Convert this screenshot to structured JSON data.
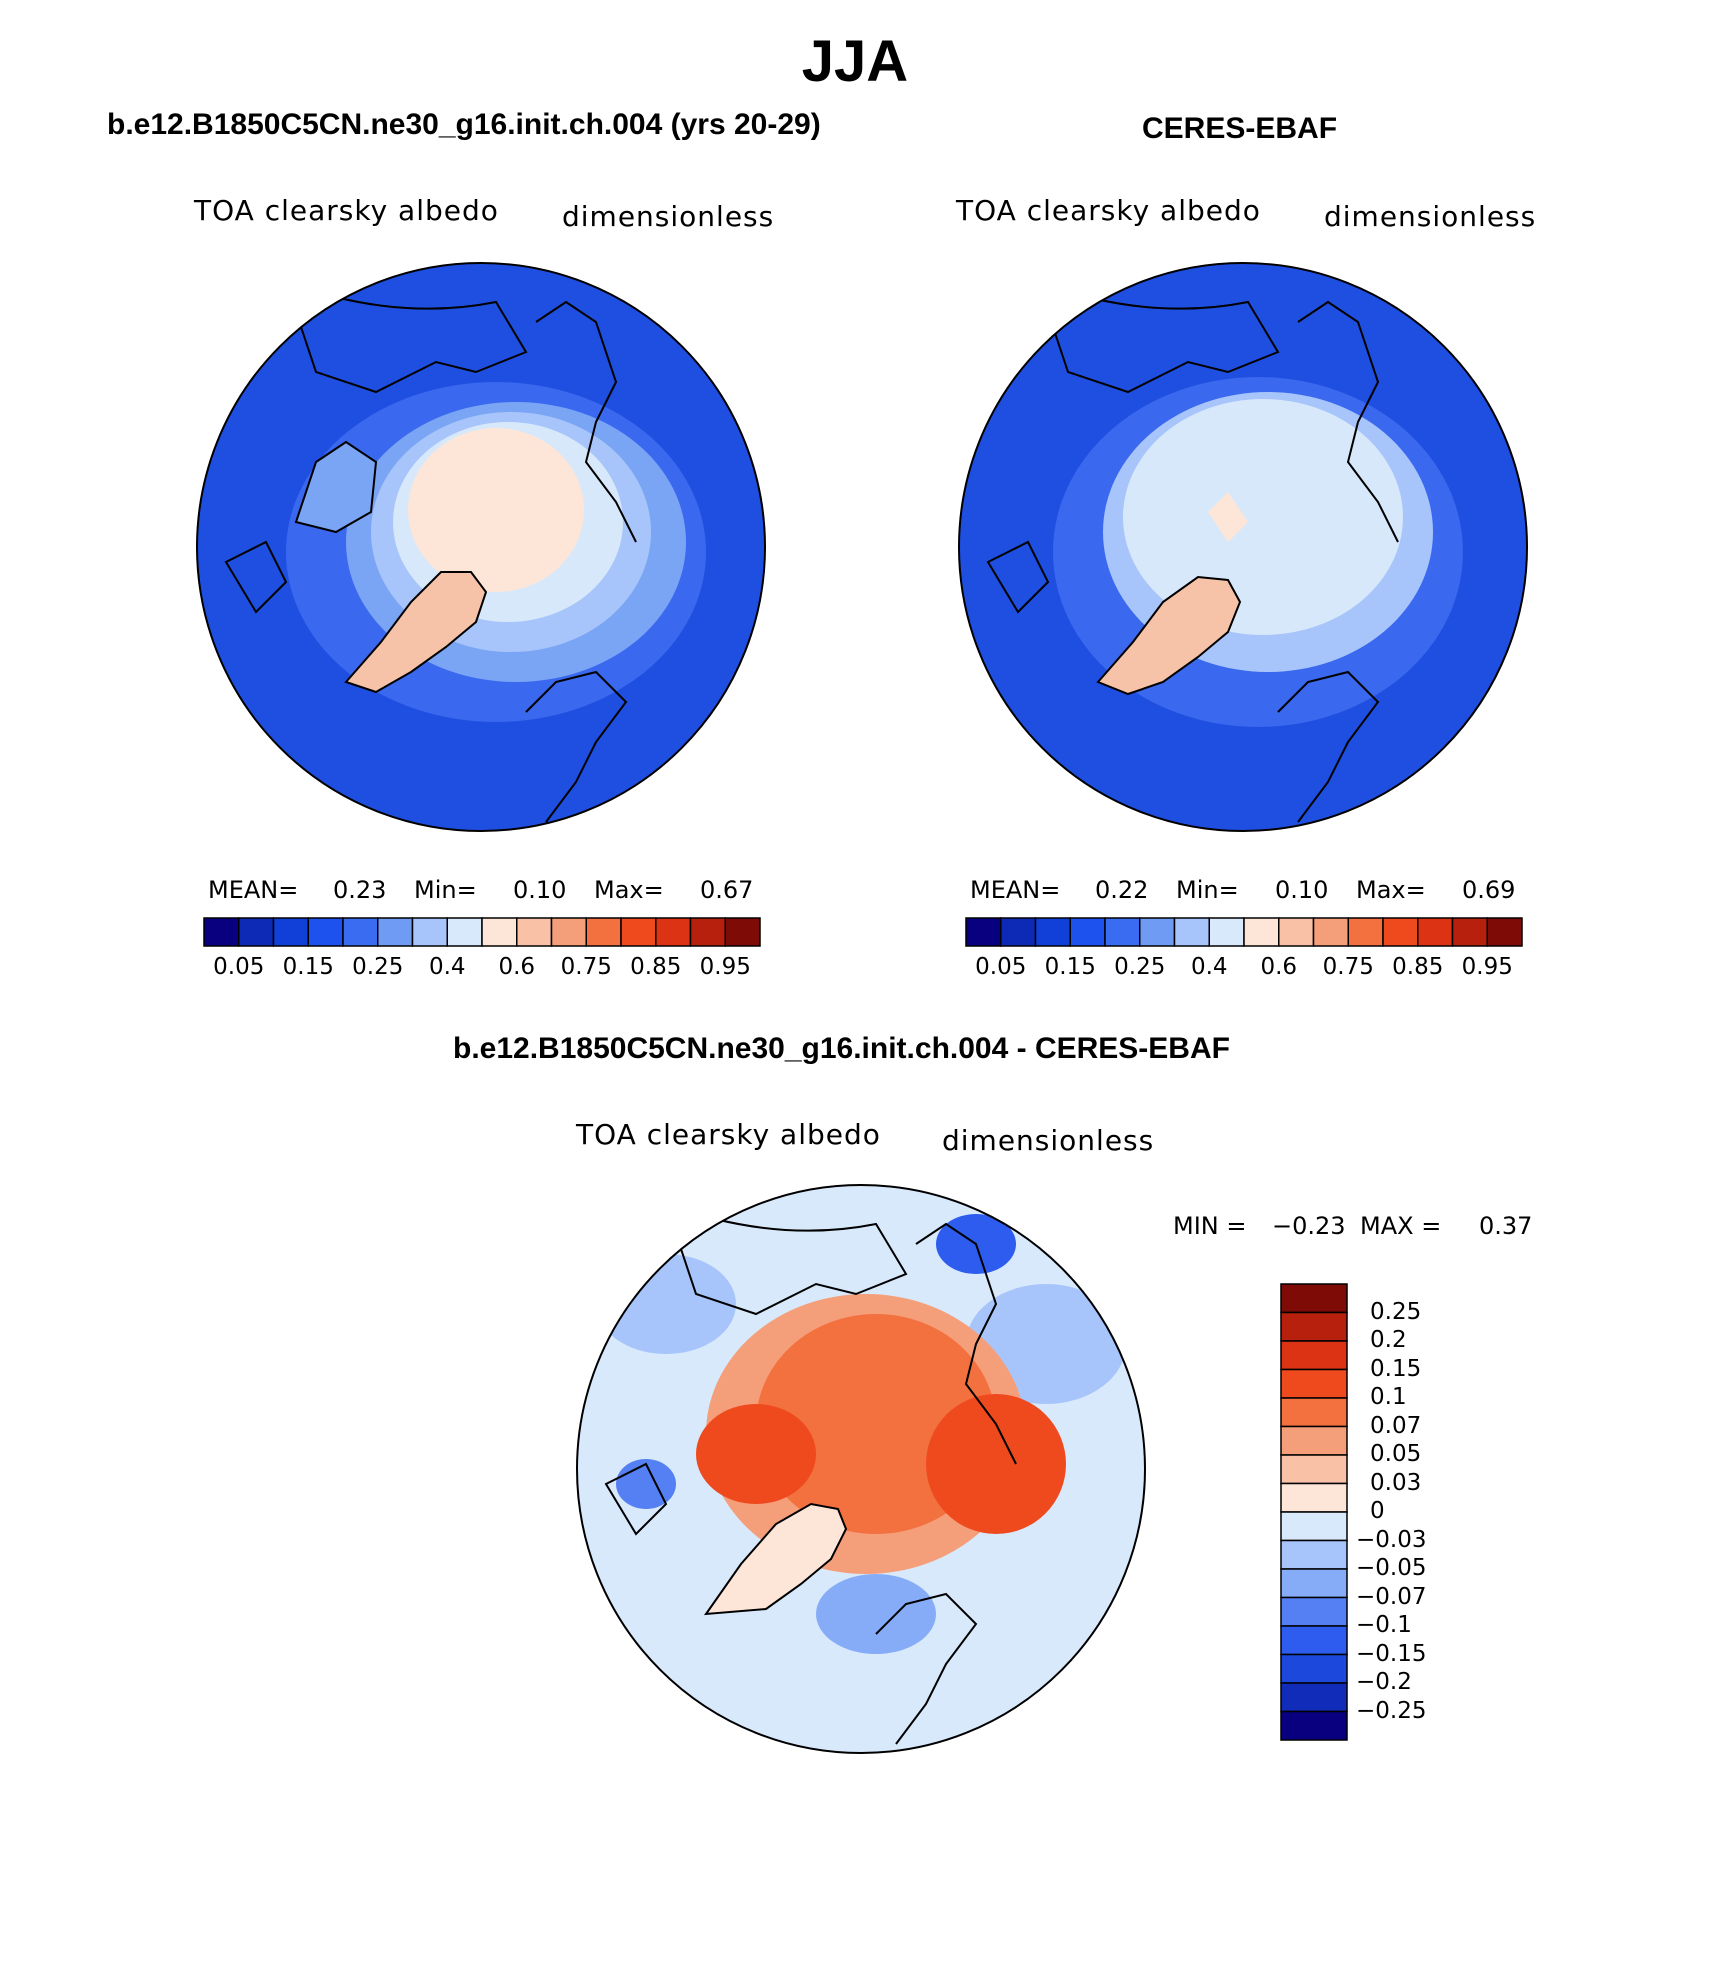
{
  "figure": {
    "title": "JJA",
    "colors": {
      "ocean": "#1f4fe0",
      "ocean_light": "#3a68ee",
      "sea_ice": "#d7e8fb",
      "ice_cap": "#fde6d8",
      "greenland": "#f6c2a8",
      "coast": "#000000"
    }
  },
  "panels": [
    {
      "title": "b.e12.B1850C5CN.ne30_g16.init.ch.004 (yrs 20-29)",
      "variable": "TOA clearsky albedo",
      "units": "dimensionless",
      "stats": {
        "mean_label": "MEAN=",
        "mean": "0.23",
        "min_label": "Min=",
        "min": "0.10",
        "max_label": "Max=",
        "max": "0.67"
      },
      "colorbar": {
        "colors": [
          "#08007f",
          "#0d2ab6",
          "#1040d8",
          "#1d52ee",
          "#3a6cf2",
          "#6f9bf5",
          "#a7c5fa",
          "#d8e9fc",
          "#fde6d8",
          "#f9c2a6",
          "#f59e7a",
          "#f3703f",
          "#ee4a1e",
          "#db3314",
          "#b6200c",
          "#7e0b05"
        ],
        "labels": [
          "0.05",
          "0.15",
          "0.25",
          "0.4",
          "0.6",
          "0.75",
          "0.85",
          "0.95"
        ]
      }
    },
    {
      "title": "CERES-EBAF",
      "variable": "TOA clearsky albedo",
      "units": "dimensionless",
      "stats": {
        "mean_label": "MEAN=",
        "mean": "0.22",
        "min_label": "Min=",
        "min": "0.10",
        "max_label": "Max=",
        "max": "0.69"
      },
      "colorbar": {
        "colors": [
          "#08007f",
          "#0d2ab6",
          "#1040d8",
          "#1d52ee",
          "#3a6cf2",
          "#6f9bf5",
          "#a7c5fa",
          "#d8e9fc",
          "#fde6d8",
          "#f9c2a6",
          "#f59e7a",
          "#f3703f",
          "#ee4a1e",
          "#db3314",
          "#b6200c",
          "#7e0b05"
        ],
        "labels": [
          "0.05",
          "0.15",
          "0.25",
          "0.4",
          "0.6",
          "0.75",
          "0.85",
          "0.95"
        ]
      }
    }
  ],
  "difference": {
    "title": "b.e12.B1850C5CN.ne30_g16.init.ch.004 - CERES-EBAF",
    "variable": "TOA clearsky albedo",
    "units": "dimensionless",
    "stats": {
      "min_label": "MIN =",
      "min": "−0.23",
      "max_label": "MAX =",
      "max": "0.37"
    },
    "colorbar": {
      "colors_top_to_bottom": [
        "#7e0b05",
        "#b6200c",
        "#db3314",
        "#ee4a1e",
        "#f3703f",
        "#f59e7a",
        "#f9c2a6",
        "#fde6d8",
        "#d8e9fc",
        "#a7c5fa",
        "#86acf7",
        "#5580f3",
        "#2d5cef",
        "#1d48dc",
        "#102cb8",
        "#08007f"
      ],
      "labels": [
        "0.25",
        "0.2",
        "0.15",
        "0.1",
        "0.07",
        "0.05",
        "0.03",
        "0",
        "−0.03",
        "−0.05",
        "−0.07",
        "−0.1",
        "−0.15",
        "−0.2",
        "−0.25"
      ]
    }
  }
}
